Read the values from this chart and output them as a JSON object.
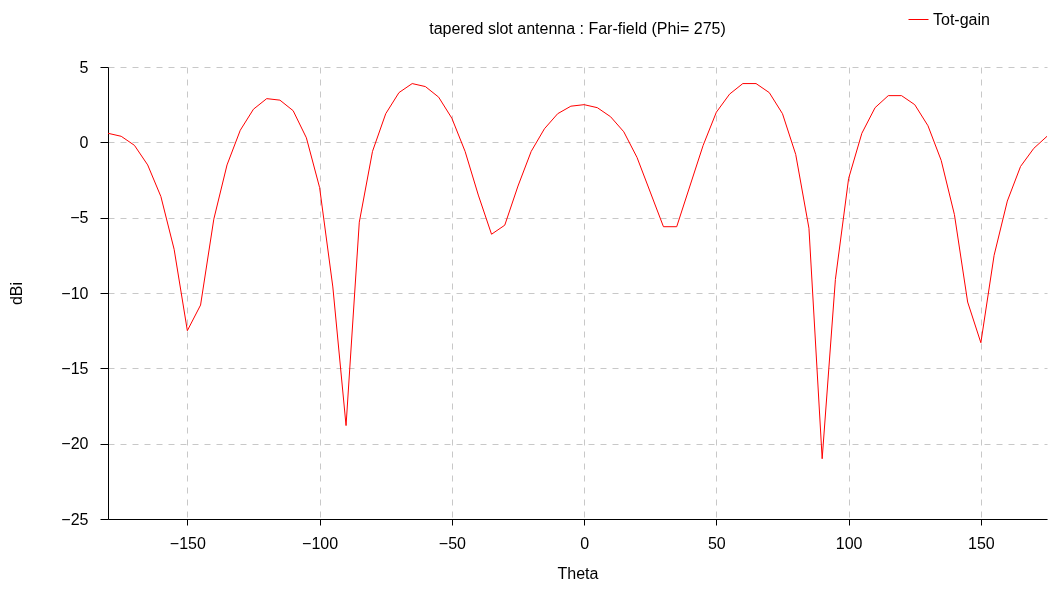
{
  "chart_data": {
    "type": "line",
    "title": "tapered slot antenna : Far-field (Phi= 275)",
    "xlabel": "Theta",
    "ylabel": "dBi",
    "x": [
      -180,
      -175,
      -170,
      -165,
      -160,
      -155,
      -150,
      -145,
      -140,
      -135,
      -130,
      -125,
      -120,
      -115,
      -110,
      -105,
      -100,
      -95,
      -90,
      -85,
      -80,
      -75,
      -70,
      -65,
      -60,
      -55,
      -50,
      -45,
      -40,
      -35,
      -30,
      -25,
      -20,
      -15,
      -10,
      -5,
      0,
      5,
      10,
      15,
      20,
      25,
      30,
      35,
      40,
      45,
      50,
      55,
      60,
      65,
      70,
      75,
      80,
      85,
      90,
      95,
      100,
      105,
      110,
      115,
      120,
      125,
      130,
      135,
      140,
      145,
      150,
      155,
      160,
      165,
      170,
      175
    ],
    "series": [
      {
        "name": "Tot-gain",
        "color": "#ff0000",
        "values": [
          0.6,
          0.4,
          -0.2,
          -1.5,
          -3.6,
          -7.1,
          -12.5,
          -10.8,
          -5.1,
          -1.5,
          0.8,
          2.2,
          2.9,
          2.8,
          2.1,
          0.3,
          -3.0,
          -9.6,
          -18.8,
          -5.3,
          -0.6,
          1.9,
          3.3,
          3.9,
          3.7,
          3.0,
          1.6,
          -0.6,
          -3.5,
          -6.1,
          -5.5,
          -2.9,
          -0.6,
          0.9,
          1.9,
          2.4,
          2.5,
          2.3,
          1.7,
          0.7,
          -1.0,
          -3.3,
          -5.6,
          -5.6,
          -2.9,
          -0.2,
          2.0,
          3.2,
          3.9,
          3.9,
          3.3,
          1.9,
          -0.8,
          -5.7,
          -21.0,
          -9.1,
          -2.4,
          0.6,
          2.3,
          3.1,
          3.1,
          2.5,
          1.1,
          -1.2,
          -4.8,
          -10.6,
          -13.3,
          -7.5,
          -3.9,
          -1.6,
          -0.4,
          0.4
        ]
      }
    ],
    "xlim": [
      -180,
      175
    ],
    "xticks": [
      -150,
      -100,
      -50,
      0,
      50,
      100,
      150
    ],
    "ylim": [
      -25,
      5
    ],
    "yticks": [
      -25,
      -20,
      -15,
      -10,
      -5,
      0,
      5
    ],
    "grid": true,
    "legend": "top right",
    "marker": "none",
    "line_style": "solid"
  }
}
